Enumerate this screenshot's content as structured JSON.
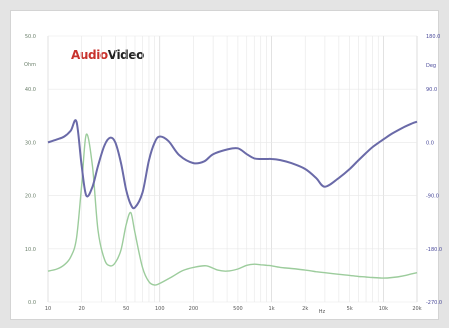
{
  "logo": {
    "part1": "Audio",
    "part2": "Video"
  },
  "chart_data": {
    "type": "line",
    "title": "",
    "xlabel": "Hz",
    "x_scale": "log",
    "xlim": [
      10,
      20000
    ],
    "x_ticks": [
      "10",
      "20",
      "50",
      "100",
      "200",
      "500",
      "1k",
      "2k",
      "5k",
      "10k",
      "20k"
    ],
    "x_tick_values": [
      10,
      20,
      50,
      100,
      200,
      500,
      1000,
      2000,
      5000,
      10000,
      20000
    ],
    "left_axis": {
      "label": "Ohm",
      "ticks": [
        "50.0",
        "40.0",
        "30.0",
        "20.0",
        "10.0",
        "0.0"
      ],
      "color": "#6aa86a"
    },
    "right_axis": {
      "label": "Deg",
      "ticks": [
        "180.0",
        "90.0",
        "0.0",
        "-90.0",
        "-180.0",
        "-270.0"
      ],
      "color": "#4a4a9a"
    },
    "grid": true,
    "series": [
      {
        "name": "",
        "axis": "left",
        "color": "#9ccc9c",
        "x": [
          10,
          12,
          14,
          16,
          18,
          20,
          22,
          25,
          28,
          32,
          36,
          40,
          45,
          50,
          55,
          60,
          70,
          80,
          90,
          100,
          130,
          160,
          200,
          260,
          330,
          400,
          500,
          600,
          700,
          800,
          900,
          1000,
          1200,
          1500,
          2000,
          2500,
          3000,
          4000,
          5000,
          6000,
          7000,
          8000,
          10000,
          12000,
          15000,
          18000,
          20000
        ],
        "y": [
          5.8,
          6.2,
          7.0,
          8.5,
          12.0,
          22.0,
          31.5,
          25.5,
          13.5,
          8.0,
          6.8,
          7.4,
          9.8,
          14.5,
          16.8,
          13.0,
          6.5,
          3.8,
          3.2,
          3.5,
          4.8,
          5.9,
          6.5,
          6.8,
          6.0,
          5.8,
          6.2,
          6.9,
          7.1,
          7.0,
          6.9,
          6.8,
          6.5,
          6.3,
          6.0,
          5.7,
          5.5,
          5.2,
          5.0,
          4.8,
          4.7,
          4.6,
          4.5,
          4.6,
          4.9,
          5.3,
          5.5
        ]
      },
      {
        "name": "",
        "axis": "right",
        "color": "#6a6aa8",
        "x": [
          10,
          12,
          14,
          16,
          18,
          20,
          22,
          25,
          28,
          32,
          36,
          40,
          45,
          50,
          55,
          60,
          70,
          80,
          90,
          100,
          120,
          150,
          200,
          250,
          300,
          400,
          500,
          600,
          700,
          800,
          900,
          1000,
          1200,
          1500,
          2000,
          2500,
          3000,
          4000,
          5000,
          6000,
          7000,
          8000,
          10000,
          12000,
          15000,
          18000,
          20000
        ],
        "y": [
          0,
          5,
          10,
          20,
          35,
          -40,
          -90,
          -75,
          -40,
          -5,
          8,
          0,
          -35,
          -80,
          -105,
          -110,
          -85,
          -30,
          0,
          10,
          2,
          -22,
          -35,
          -32,
          -20,
          -12,
          -10,
          -20,
          -27,
          -28,
          -28,
          -28,
          -30,
          -35,
          -45,
          -60,
          -75,
          -60,
          -45,
          -30,
          -18,
          -8,
          5,
          15,
          25,
          32,
          35
        ]
      }
    ]
  }
}
